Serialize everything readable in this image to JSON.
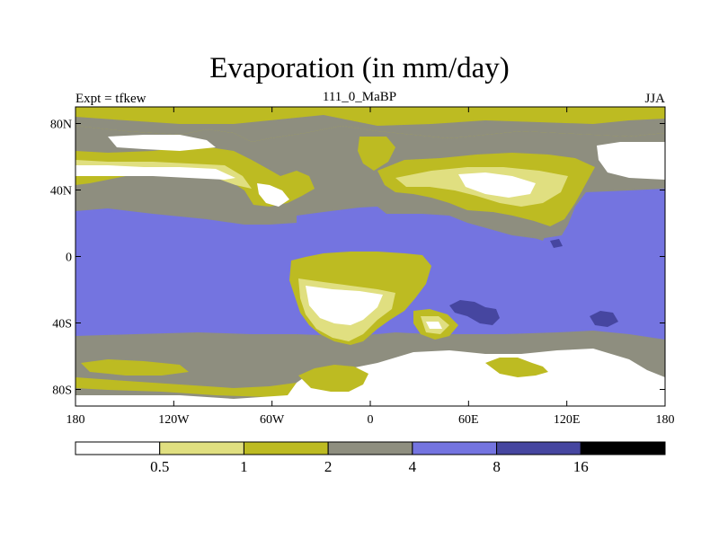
{
  "title": "Evaporation (in mm/day)",
  "subtitle_left": "Expt = tfkew",
  "subtitle_center": "111_0_MaBP",
  "subtitle_right": "JJA",
  "map": {
    "projection": "cylindrical-equidistant",
    "lon_range": [
      -180,
      180
    ],
    "lat_range": [
      -90,
      90
    ],
    "lon_ticks": [
      {
        "value": -180,
        "label": "180"
      },
      {
        "value": -120,
        "label": "120W"
      },
      {
        "value": -60,
        "label": "60W"
      },
      {
        "value": 0,
        "label": "0"
      },
      {
        "value": 60,
        "label": "60E"
      },
      {
        "value": 120,
        "label": "120E"
      },
      {
        "value": 180,
        "label": "180"
      }
    ],
    "lat_ticks": [
      {
        "value": 80,
        "label": "80N"
      },
      {
        "value": 40,
        "label": "40N"
      },
      {
        "value": 0,
        "label": "0"
      },
      {
        "value": -40,
        "label": "40S"
      },
      {
        "value": -80,
        "label": "80S"
      }
    ]
  },
  "colorbar": {
    "levels": [
      "0.5",
      "1",
      "2",
      "4",
      "8",
      "16"
    ],
    "colors": [
      "#ffffff",
      "#e0df80",
      "#bdbb22",
      "#8e8e7f",
      "#7474e0",
      "#4646a0",
      "#000000"
    ]
  }
}
